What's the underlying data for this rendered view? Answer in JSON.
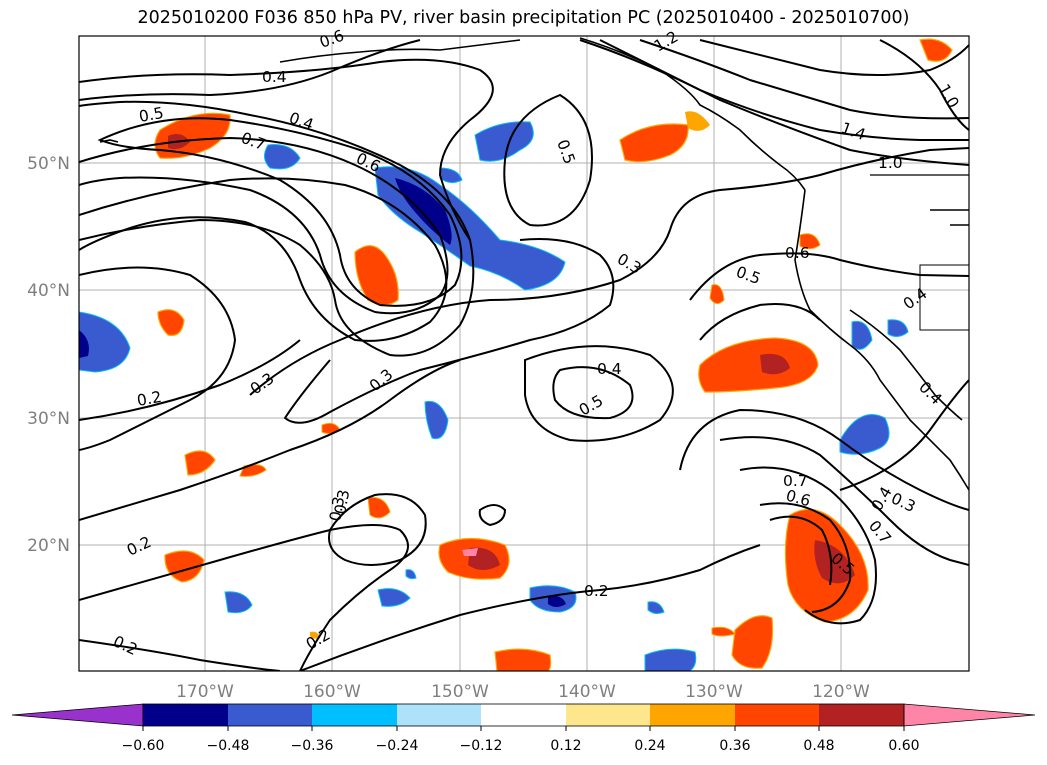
{
  "title": "2025010200 F036 850 hPa PV, river basin precipitation PC (2025010400 - 2025010700)",
  "lat_ticks": [
    "50°N",
    "40°N",
    "30°N",
    "20°N"
  ],
  "lon_ticks": [
    "170°W",
    "160°W",
    "150°W",
    "140°W",
    "130°W",
    "120°W"
  ],
  "contour_labels": [
    "0.6",
    "1.2",
    "0.4",
    "0.5",
    "0.4",
    "0.7",
    "0.6",
    "0.5",
    "1.4",
    "1.0",
    "1.0",
    "0.6",
    "0.3",
    "0.5",
    "0.4",
    "0.4",
    "0.2",
    "0.3",
    "0.3",
    "0.4",
    "0.5",
    "0.4",
    "0.7",
    "0.6",
    "0.3",
    "0.7",
    "0.5",
    "0.3",
    "0.3",
    "0.2",
    "0.2",
    "0.2",
    "0.2"
  ],
  "colorbar": {
    "tick_labels": [
      "−0.60",
      "−0.48",
      "−0.36",
      "−0.24",
      "−0.12",
      "0.12",
      "0.24",
      "0.36",
      "0.48",
      "0.60"
    ],
    "colors": [
      "#9932cc",
      "#00008b",
      "#3a5bd0",
      "#00bfff",
      "#aee2fa",
      "#ffffff",
      "#fde68c",
      "#ffa500",
      "#ff4500",
      "#b22222",
      "#ff85a8"
    ]
  },
  "colors": {
    "negative_strong": "#00008b",
    "negative_mid": "#3a5bd0",
    "negative_light": "#00bfff",
    "positive_mid": "#ff4500",
    "positive_strong": "#b22222",
    "positive_light": "#ffa500",
    "contour": "#000000",
    "grid": "#b0b0b0"
  }
}
